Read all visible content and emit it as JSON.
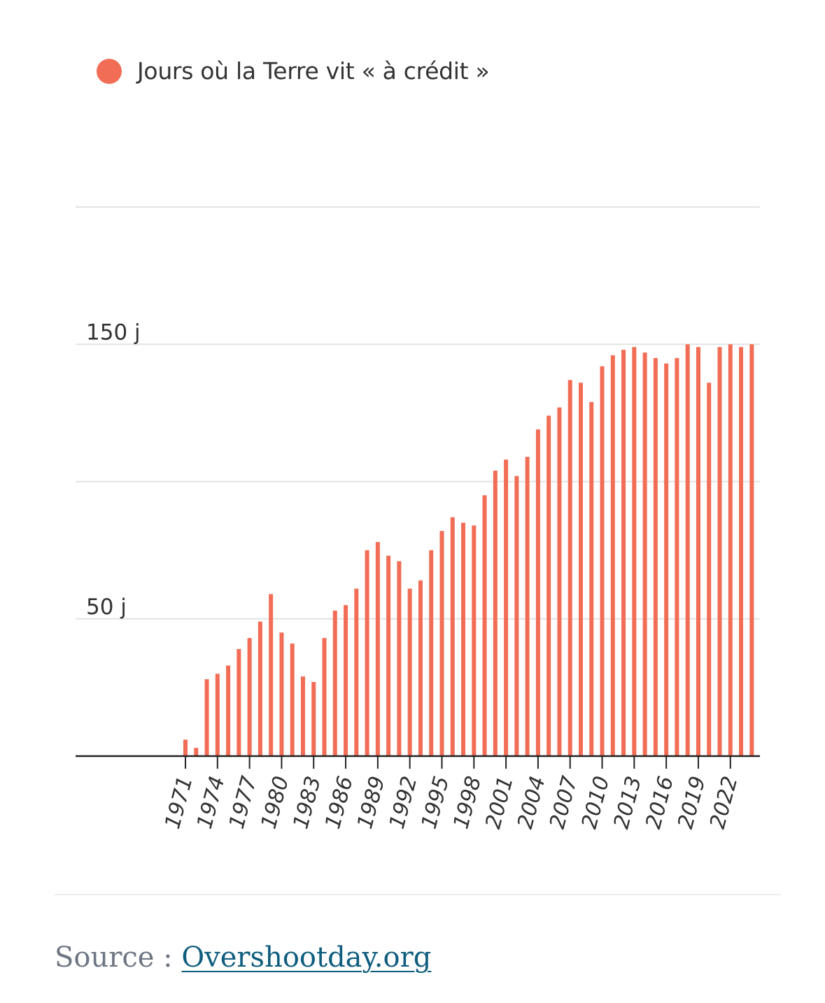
{
  "colors": {
    "bar": "#f26d55",
    "axis": "#222222",
    "grid": "#e3e3e3",
    "text": "#333333",
    "link": "#0f5d7e",
    "muted": "#6e7683"
  },
  "chart_data": {
    "type": "bar",
    "legend": [
      {
        "name": "Jours où la Terre vit « à crédit »",
        "color": "#f26d55"
      }
    ],
    "x": [
      1971,
      1972,
      1973,
      1974,
      1975,
      1976,
      1977,
      1978,
      1979,
      1980,
      1981,
      1982,
      1983,
      1984,
      1985,
      1986,
      1987,
      1988,
      1989,
      1990,
      1991,
      1992,
      1993,
      1994,
      1995,
      1996,
      1997,
      1998,
      1999,
      2000,
      2001,
      2002,
      2003,
      2004,
      2005,
      2006,
      2007,
      2008,
      2009,
      2010,
      2011,
      2012,
      2013,
      2014,
      2015,
      2016,
      2017,
      2018,
      2019,
      2020,
      2021,
      2022,
      2023,
      2024
    ],
    "x_tick_labels": [
      "1971",
      "1974",
      "1977",
      "1980",
      "1983",
      "1986",
      "1989",
      "1992",
      "1995",
      "1998",
      "2001",
      "2004",
      "2007",
      "2010",
      "2013",
      "2016",
      "2019",
      "2022"
    ],
    "values": [
      6,
      3,
      28,
      30,
      33,
      39,
      43,
      49,
      59,
      45,
      41,
      29,
      27,
      43,
      53,
      55,
      61,
      75,
      78,
      73,
      71,
      61,
      64,
      75,
      82,
      87,
      85,
      84,
      95,
      104,
      108,
      102,
      109,
      119,
      124,
      127,
      137,
      136,
      129,
      142,
      146,
      148,
      149,
      147,
      145,
      143,
      145,
      150,
      149,
      136,
      149,
      150,
      149,
      150
    ],
    "y_tick_labels": [
      {
        "value": 150,
        "label": "150 j"
      },
      {
        "value": 50,
        "label": "50 j"
      }
    ],
    "gridlines": [
      50,
      100,
      150,
      200
    ],
    "ylim": [
      0,
      200
    ]
  },
  "source": {
    "prefix": "Source : ",
    "link_text": "Overshootday.org"
  }
}
